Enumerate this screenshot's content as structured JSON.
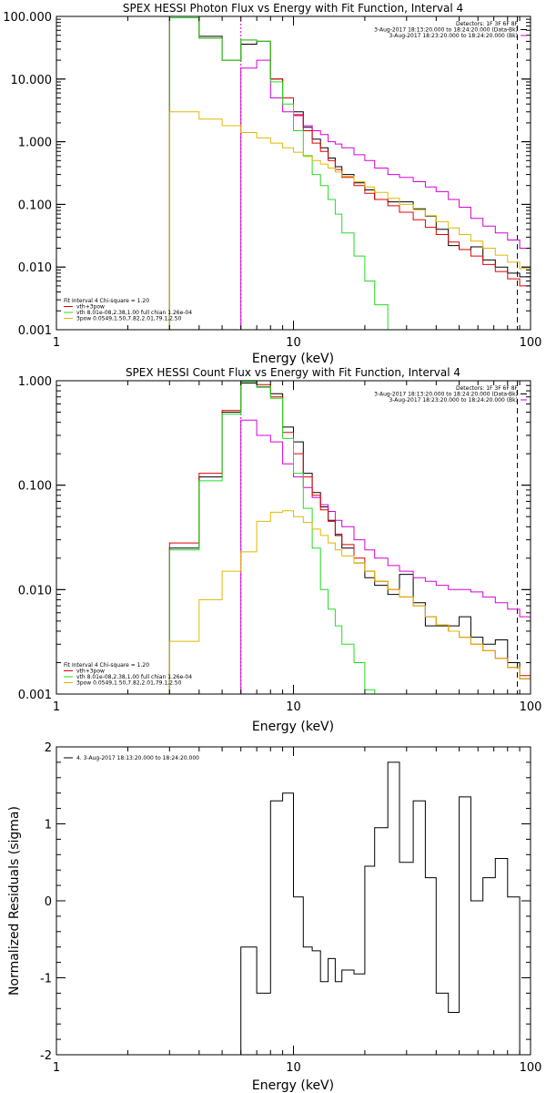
{
  "colors": {
    "black": "#000000",
    "red": "#e00000",
    "green": "#22dd22",
    "magenta": "#d500d5",
    "yellow": "#e0b800",
    "blue": "#3333dd"
  },
  "chart_data": [
    {
      "type": "line",
      "id": "photon",
      "title": "SPEX HESSI Photon Flux vs Energy with Fit Function, Interval 4",
      "xlabel": "Energy (keV)",
      "ylabel": "",
      "xscale": "log",
      "yscale": "log",
      "xlim": [
        1,
        100
      ],
      "ylim": [
        0.001,
        100
      ],
      "xticks": [
        {
          "v": 1,
          "label": "1"
        },
        {
          "v": 10,
          "label": "10"
        },
        {
          "v": 100,
          "label": "100"
        }
      ],
      "yticks": [
        {
          "v": 0.001,
          "label": "0.001"
        },
        {
          "v": 0.01,
          "label": "0.010"
        },
        {
          "v": 0.1,
          "label": "0.100"
        },
        {
          "v": 1,
          "label": "1.000"
        },
        {
          "v": 10,
          "label": "10.000"
        },
        {
          "v": 100,
          "label": "100.000"
        }
      ],
      "vlines": [
        {
          "x": 6,
          "color": "magenta"
        },
        {
          "x": 88,
          "color": "black"
        }
      ],
      "edges": [
        3,
        4,
        5,
        6,
        7,
        8,
        9,
        10,
        11,
        12,
        13,
        14,
        15,
        16,
        18,
        20,
        22,
        25,
        28,
        32,
        36,
        40,
        45,
        50,
        56,
        63,
        71,
        80,
        90,
        100
      ],
      "series": [
        {
          "name": "",
          "color": "black",
          "values": [
            95,
            48,
            20,
            36,
            40,
            10,
            5.0,
            3.0,
            1.7,
            1.1,
            0.8,
            0.55,
            0.4,
            0.3,
            0.22,
            0.17,
            0.12,
            0.11,
            0.11,
            0.085,
            0.065,
            0.04,
            0.022,
            0.019,
            0.021,
            0.013,
            0.01,
            0.008,
            0.007
          ]
        },
        {
          "name": "",
          "color": "magenta",
          "values": [
            null,
            null,
            null,
            15,
            20,
            5.0,
            3.0,
            2.6,
            1.8,
            1.5,
            1.3,
            1.0,
            0.92,
            0.8,
            0.62,
            0.5,
            0.38,
            0.3,
            0.27,
            0.23,
            0.19,
            0.16,
            0.12,
            0.09,
            0.06,
            0.045,
            0.035,
            0.027,
            0.02
          ]
        },
        {
          "name": "",
          "color": "red",
          "values": [
            95,
            45,
            20,
            42,
            40,
            10,
            5.0,
            2.7,
            1.5,
            0.95,
            0.7,
            0.5,
            0.36,
            0.27,
            0.2,
            0.15,
            0.12,
            0.095,
            0.075,
            0.057,
            0.043,
            0.033,
            0.025,
            0.019,
            0.015,
            0.011,
            0.0085,
            0.0065,
            0.005
          ]
        },
        {
          "name": "",
          "color": "green",
          "values": [
            95,
            45,
            20,
            42,
            40,
            9.0,
            4.0,
            1.5,
            0.6,
            0.3,
            0.2,
            0.12,
            0.07,
            0.035,
            0.015,
            0.006,
            0.0025,
            0.001,
            null,
            null,
            null,
            null,
            null,
            null,
            null,
            null,
            null,
            null,
            null
          ]
        },
        {
          "name": "",
          "color": "yellow",
          "values": [
            3.0,
            2.3,
            1.8,
            1.4,
            1.15,
            0.95,
            0.8,
            0.68,
            0.58,
            0.5,
            0.44,
            0.38,
            0.33,
            0.28,
            0.23,
            0.19,
            0.155,
            0.125,
            0.1,
            0.082,
            0.066,
            0.053,
            0.042,
            0.033,
            0.026,
            0.02,
            0.0155,
            0.012,
            0.0095
          ]
        }
      ],
      "legend_left": [
        {
          "text": "Fit Interval 4   Chi-square = 1.20",
          "color": ""
        },
        {
          "text": "vth+3pow",
          "color": "red"
        },
        {
          "text": "vth 8.01e-08,2.38,1.00  full chian 1.26e-04",
          "color": "green"
        },
        {
          "text": "3pow 0.0549,1.50,7.82,2.01,79.1,2.50",
          "color": "yellow"
        }
      ],
      "legend_right": [
        {
          "text": "Detectors: 1F 3F 6F 8F",
          "color": ""
        },
        {
          "text": "3-Aug-2017 18:13:20.000 to 18:24:20.000 (Data-Bk)",
          "color": "black"
        },
        {
          "text": "3-Aug-2017 18:23:20.000 to 18:24:20.000 (Bk)",
          "color": "magenta"
        }
      ]
    },
    {
      "type": "line",
      "id": "count",
      "title": "SPEX HESSI Count Flux vs Energy with Fit Function, Interval 4",
      "xlabel": "Energy (keV)",
      "ylabel": "",
      "xscale": "log",
      "yscale": "log",
      "xlim": [
        1,
        100
      ],
      "ylim": [
        0.001,
        1
      ],
      "xticks": [
        {
          "v": 1,
          "label": "1"
        },
        {
          "v": 10,
          "label": "10"
        },
        {
          "v": 100,
          "label": "100"
        }
      ],
      "yticks": [
        {
          "v": 0.001,
          "label": "0.001"
        },
        {
          "v": 0.01,
          "label": "0.010"
        },
        {
          "v": 0.1,
          "label": "0.100"
        },
        {
          "v": 1,
          "label": "1.000"
        }
      ],
      "vlines": [
        {
          "x": 6,
          "color": "magenta"
        },
        {
          "x": 88,
          "color": "black"
        }
      ],
      "edges": [
        3,
        4,
        5,
        6,
        7,
        8,
        9,
        10,
        11,
        12,
        13,
        14,
        15,
        16,
        18,
        20,
        22,
        25,
        28,
        32,
        36,
        40,
        45,
        50,
        56,
        63,
        71,
        80,
        90,
        100
      ],
      "series": [
        {
          "name": "",
          "color": "black",
          "values": [
            0.025,
            0.12,
            0.5,
            0.95,
            0.87,
            0.75,
            0.36,
            0.26,
            0.13,
            0.085,
            0.062,
            0.046,
            0.033,
            0.025,
            0.018,
            0.013,
            0.011,
            0.009,
            0.014,
            0.0075,
            0.0045,
            0.0045,
            0.0045,
            0.0055,
            0.0035,
            0.003,
            0.0033,
            0.002,
            0.0014
          ]
        },
        {
          "name": "",
          "color": "magenta",
          "values": [
            null,
            null,
            null,
            0.42,
            0.3,
            0.26,
            0.16,
            0.12,
            0.095,
            0.076,
            0.065,
            0.056,
            0.046,
            0.04,
            0.03,
            0.024,
            0.02,
            0.017,
            0.015,
            0.013,
            0.012,
            0.011,
            0.01,
            0.01,
            0.0095,
            0.0085,
            0.0075,
            0.0065,
            0.0055
          ]
        },
        {
          "name": "",
          "color": "red",
          "values": [
            0.028,
            0.13,
            0.52,
            1.0,
            0.92,
            0.7,
            0.32,
            0.2,
            0.12,
            0.08,
            0.058,
            0.045,
            0.034,
            0.027,
            0.02,
            0.015,
            0.012,
            0.01,
            0.0085,
            0.007,
            0.0055,
            0.0046,
            0.004,
            0.0035,
            0.003,
            0.0026,
            0.0022,
            0.0018,
            0.0015
          ]
        },
        {
          "name": "",
          "color": "green",
          "values": [
            0.024,
            0.11,
            0.48,
            0.98,
            0.88,
            0.68,
            0.28,
            0.13,
            0.06,
            0.025,
            0.01,
            0.0065,
            0.0045,
            0.003,
            0.002,
            0.0011,
            null,
            null,
            null,
            null,
            null,
            null,
            null,
            null,
            null,
            null,
            null,
            null,
            null
          ]
        },
        {
          "name": "",
          "color": "yellow",
          "values": [
            0.0032,
            0.008,
            0.015,
            0.023,
            0.045,
            0.055,
            0.057,
            0.05,
            0.044,
            0.038,
            0.033,
            0.028,
            0.024,
            0.021,
            0.018,
            0.015,
            0.012,
            0.01,
            0.0085,
            0.007,
            0.0055,
            0.0046,
            0.004,
            0.0035,
            0.003,
            0.0026,
            0.0022,
            0.0018,
            0.0014
          ]
        }
      ],
      "legend_left": [
        {
          "text": "Fit Interval 4   Chi-square = 1.20",
          "color": ""
        },
        {
          "text": "vth+3pow",
          "color": "red"
        },
        {
          "text": "vth 8.01e-08,2.38,1.00  full chian 1.26e-04",
          "color": "green"
        },
        {
          "text": "3pow 0.0549,1.50,7.82,2.01,79.1,2.50",
          "color": "yellow"
        }
      ],
      "legend_right": [
        {
          "text": "Detectors: 1F 3F 6F 8F",
          "color": ""
        },
        {
          "text": "3-Aug-2017 18:13:20.000 to 18:24:20.000 (Data-Bk)",
          "color": "black"
        },
        {
          "text": "3-Aug-2017 18:23:20.000 to 18:24:20.000 (Bk)",
          "color": "magenta"
        }
      ]
    },
    {
      "type": "line",
      "id": "residuals",
      "title": "",
      "xlabel": "Energy (keV)",
      "ylabel": "Normalized Residuals (sigma)",
      "xscale": "log",
      "yscale": "linear",
      "xlim": [
        1,
        100
      ],
      "ylim": [
        -2,
        2
      ],
      "xticks": [
        {
          "v": 1,
          "label": "1"
        },
        {
          "v": 10,
          "label": "10"
        },
        {
          "v": 100,
          "label": "100"
        }
      ],
      "yticks": [
        {
          "v": -2,
          "label": "-2"
        },
        {
          "v": -1,
          "label": "-1"
        },
        {
          "v": 0,
          "label": "0"
        },
        {
          "v": 1,
          "label": "1"
        },
        {
          "v": 2,
          "label": "2"
        }
      ],
      "vlines": [],
      "edges": [
        6,
        7,
        8,
        9,
        10,
        11,
        12,
        13,
        14,
        15,
        16,
        18,
        20,
        22,
        25,
        28,
        32,
        36,
        40,
        45,
        50,
        56,
        63,
        71,
        80,
        90
      ],
      "series": [
        {
          "name": "",
          "color": "black",
          "values": [
            -0.6,
            -1.2,
            1.3,
            1.4,
            0.05,
            -0.6,
            -0.65,
            -1.05,
            -0.75,
            -1.05,
            -0.9,
            -0.95,
            0.45,
            0.95,
            1.8,
            0.5,
            1.3,
            0.3,
            -1.2,
            -1.45,
            1.35,
            0.0,
            0.3,
            0.55,
            0.05
          ]
        }
      ],
      "legend_left": [
        {
          "text": "4.  3-Aug-2017 18:13:20.000 to 18:24:20.000",
          "color": "black"
        }
      ],
      "legend_right": []
    }
  ]
}
